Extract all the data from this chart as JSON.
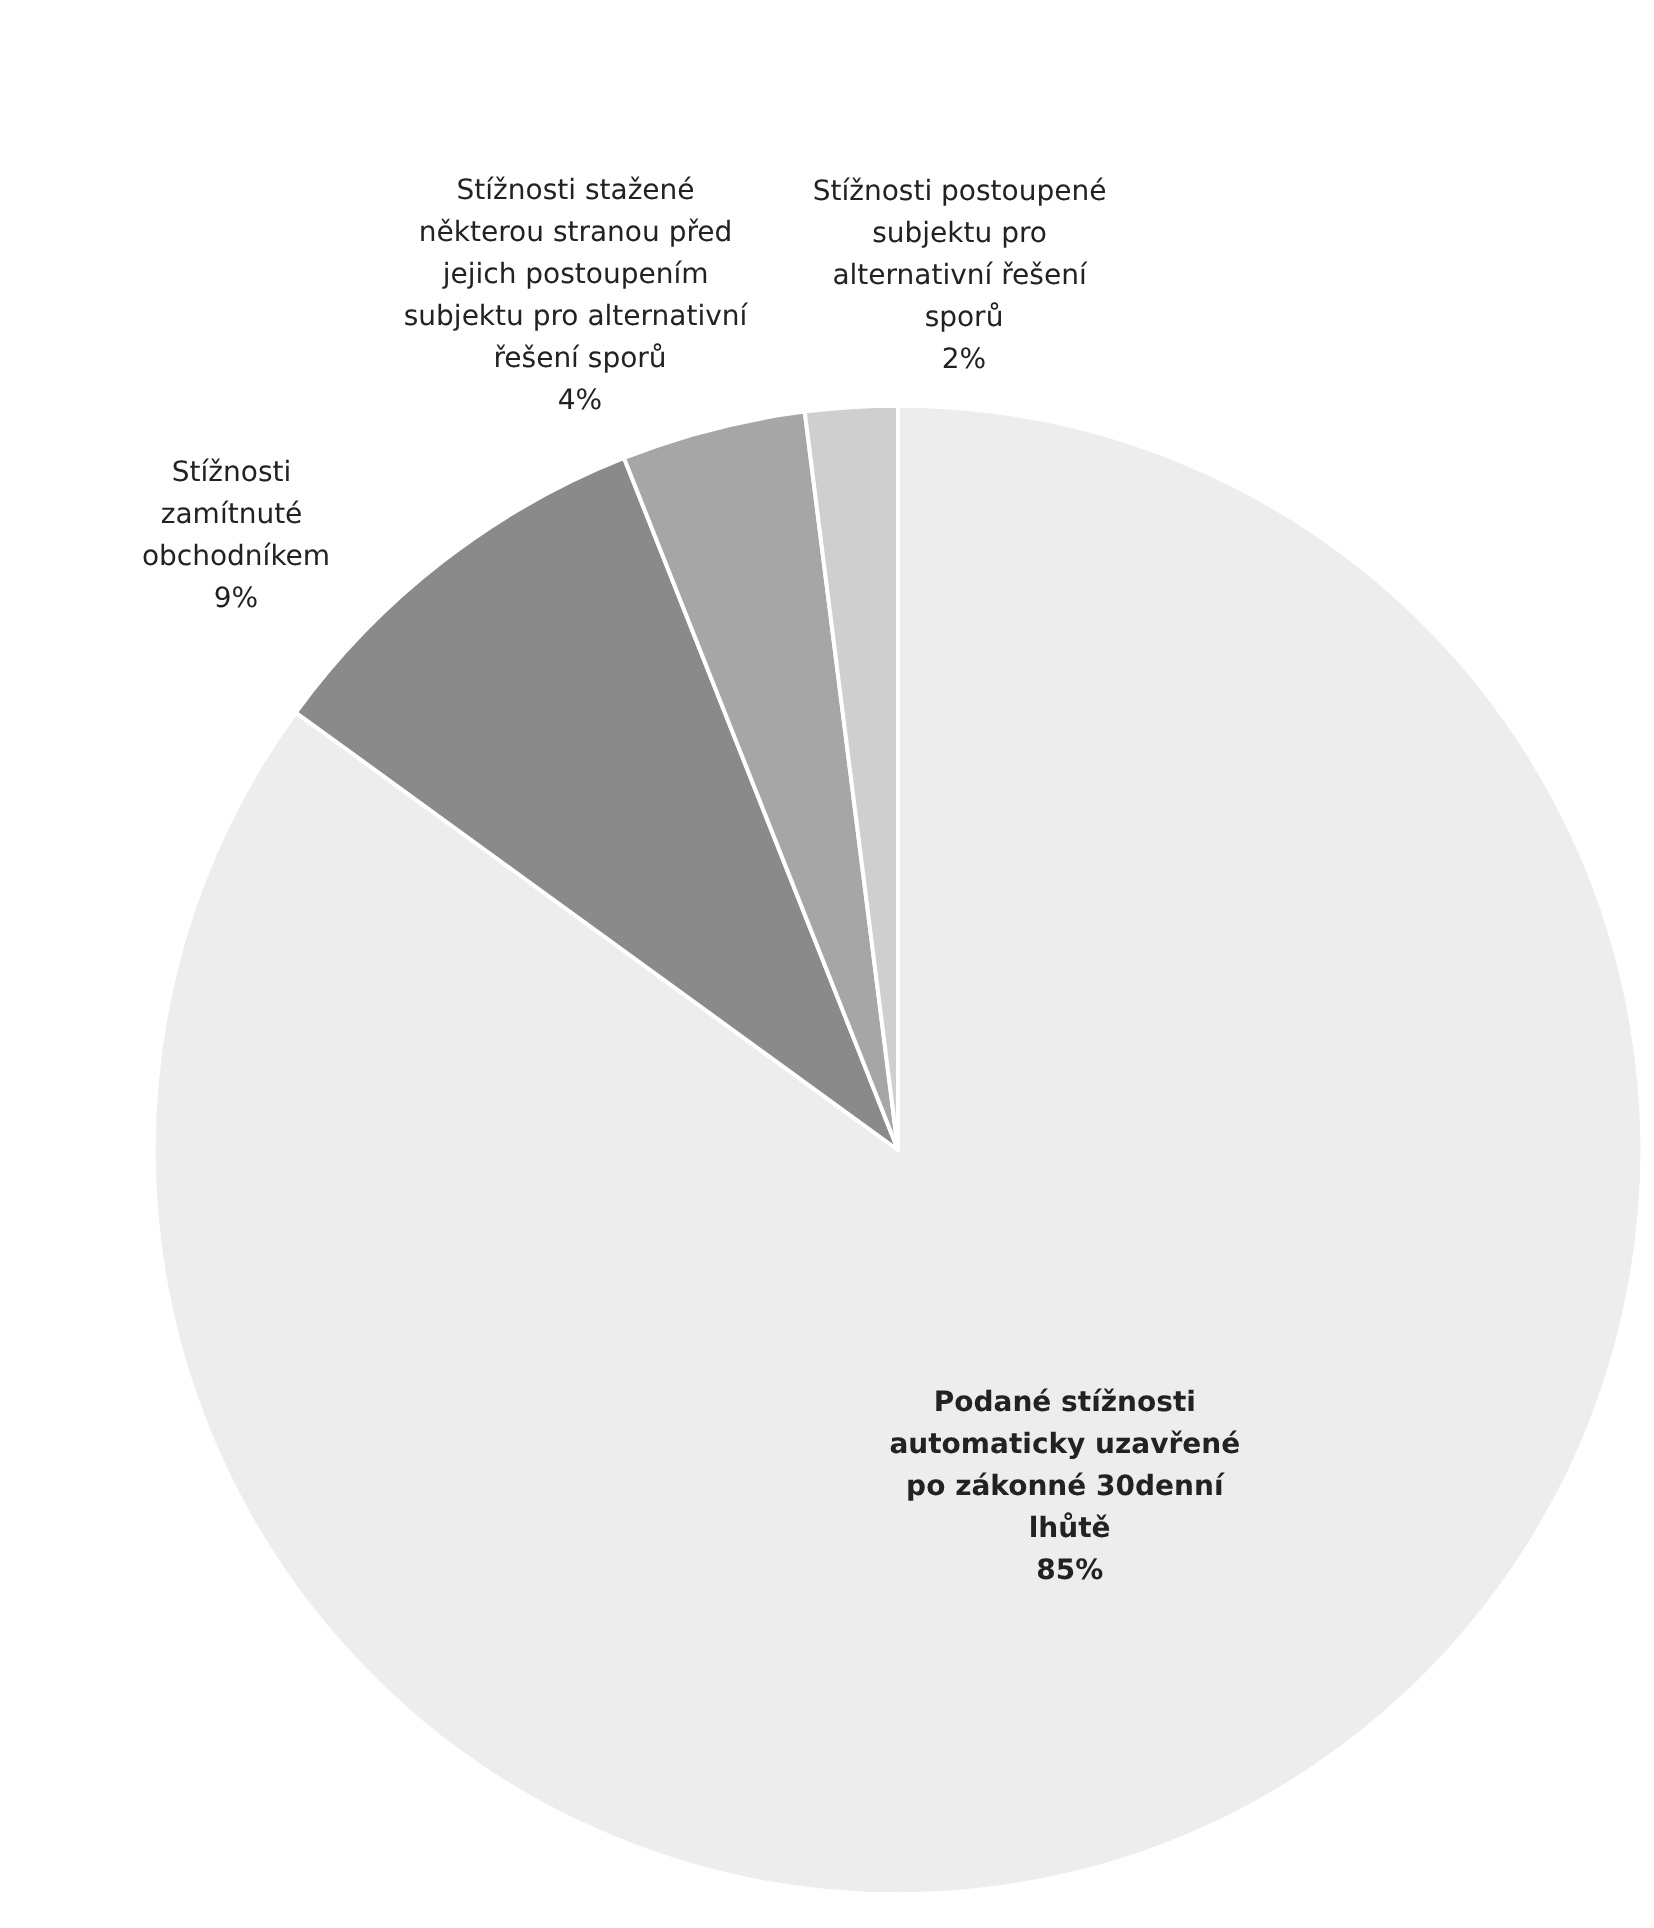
{
  "chart_data": {
    "type": "pie",
    "categories": [
      "Podané stížnosti automaticky uzavřené po zákonné 30denní lhůtě",
      "Stížnosti zamítnuté obchodníkem",
      "Stížnosti stažené některou stranou před jejich postoupením subjektu pro alternativní řešení sporů",
      "Stížnosti postoupené subjektu pro alternativní řešení sporů"
    ],
    "values": [
      85,
      9,
      4,
      2
    ],
    "colors": [
      "#ededed",
      "#8a8a8a",
      "#a6a6a6",
      "#cfcfcf"
    ],
    "value_labels": [
      "85%",
      "9%",
      "4%",
      "2%"
    ]
  }
}
